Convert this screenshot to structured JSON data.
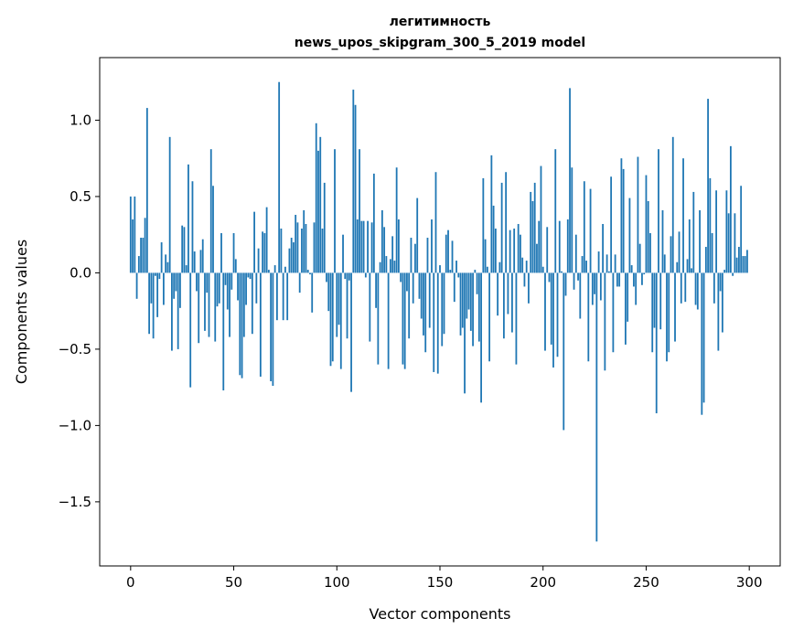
{
  "chart_data": {
    "type": "bar",
    "title": [
      "легитимность",
      "news_upos_skipgram_300_5_2019 model"
    ],
    "xlabel": "Vector components",
    "ylabel": "Components values",
    "xlim": [
      -15,
      315
    ],
    "ylim": [
      -1.92,
      1.41
    ],
    "xticks": [
      0,
      50,
      100,
      150,
      200,
      250,
      300
    ],
    "xtick_labels": [
      "0",
      "50",
      "100",
      "150",
      "200",
      "250",
      "300"
    ],
    "yticks": [
      -1.5,
      -1.0,
      -0.5,
      0.0,
      0.5,
      1.0
    ],
    "ytick_labels": [
      "−1.5",
      "−1.0",
      "−0.5",
      "0.0",
      "0.5",
      "1.0"
    ],
    "grid": false,
    "bar_color": "#1f77b4",
    "values": [
      0.5,
      0.35,
      0.5,
      -0.17,
      0.11,
      0.23,
      0.23,
      0.36,
      1.08,
      -0.4,
      -0.2,
      -0.43,
      -0.02,
      -0.29,
      -0.04,
      0.2,
      -0.21,
      0.12,
      0.07,
      0.89,
      -0.51,
      -0.17,
      -0.12,
      -0.5,
      -0.23,
      0.31,
      0.3,
      0.05,
      0.71,
      -0.75,
      0.6,
      0.14,
      -0.12,
      -0.46,
      0.15,
      0.22,
      -0.38,
      -0.13,
      -0.42,
      0.81,
      0.57,
      -0.45,
      -0.22,
      -0.2,
      0.26,
      -0.77,
      -0.08,
      -0.24,
      -0.42,
      -0.11,
      0.26,
      0.09,
      -0.18,
      -0.67,
      -0.69,
      -0.42,
      -0.21,
      -0.03,
      -0.04,
      -0.4,
      0.4,
      -0.2,
      0.16,
      -0.68,
      0.27,
      0.26,
      0.43,
      0.02,
      -0.71,
      -0.74,
      0.05,
      -0.31,
      1.25,
      0.29,
      -0.31,
      0.04,
      -0.31,
      0.16,
      0.23,
      0.2,
      0.38,
      0.33,
      -0.13,
      0.29,
      0.41,
      0.32,
      0.02,
      -0.01,
      -0.26,
      0.33,
      0.98,
      0.8,
      0.89,
      0.29,
      0.59,
      -0.06,
      -0.25,
      -0.61,
      -0.58,
      0.81,
      -0.42,
      -0.34,
      -0.63,
      0.25,
      -0.04,
      -0.43,
      -0.05,
      -0.78,
      1.2,
      1.1,
      0.35,
      0.81,
      0.34,
      0.34,
      -0.03,
      0.34,
      -0.45,
      0.33,
      0.65,
      -0.23,
      -0.6,
      0.07,
      0.41,
      0.3,
      0.11,
      -0.63,
      0.09,
      0.24,
      0.08,
      0.69,
      0.35,
      -0.06,
      -0.6,
      -0.63,
      -0.12,
      -0.43,
      0.23,
      -0.2,
      0.19,
      0.49,
      -0.17,
      -0.3,
      -0.41,
      -0.52,
      0.23,
      -0.36,
      0.35,
      -0.65,
      0.66,
      -0.66,
      0.05,
      -0.48,
      -0.4,
      0.25,
      0.28,
      0.02,
      0.21,
      -0.19,
      0.08,
      -0.03,
      -0.41,
      -0.36,
      -0.79,
      -0.3,
      -0.24,
      -0.38,
      -0.48,
      0.02,
      -0.14,
      -0.45,
      -0.85,
      0.62,
      0.22,
      0.04,
      -0.58,
      0.77,
      0.44,
      0.29,
      -0.28,
      0.07,
      0.59,
      -0.43,
      0.66,
      -0.27,
      0.28,
      -0.39,
      0.29,
      -0.6,
      0.32,
      0.25,
      0.1,
      -0.09,
      0.08,
      -0.2,
      0.53,
      0.47,
      0.59,
      0.19,
      0.34,
      0.7,
      0.04,
      -0.51,
      0.3,
      -0.06,
      -0.47,
      -0.62,
      0.81,
      -0.55,
      0.34,
      0.01,
      -1.03,
      -0.15,
      0.35,
      1.21,
      0.69,
      -0.11,
      0.25,
      -0.05,
      -0.3,
      0.11,
      0.6,
      0.08,
      -0.58,
      0.55,
      -0.21,
      -0.14,
      -1.76,
      0.14,
      -0.18,
      0.32,
      -0.64,
      0.12,
      0.01,
      0.63,
      -0.52,
      0.12,
      -0.09,
      -0.09,
      0.75,
      0.68,
      -0.47,
      -0.32,
      0.49,
      0.05,
      -0.09,
      -0.21,
      0.76,
      0.19,
      -0.08,
      -0.01,
      0.64,
      0.47,
      0.26,
      -0.52,
      -0.36,
      -0.92,
      0.81,
      -0.37,
      0.41,
      0.12,
      -0.58,
      -0.52,
      0.24,
      0.89,
      -0.45,
      0.07,
      0.27,
      -0.2,
      0.75,
      -0.19,
      0.09,
      0.35,
      0.03,
      0.53,
      -0.21,
      -0.24,
      0.41,
      -0.93,
      -0.85,
      0.17,
      1.14,
      0.62,
      0.26,
      -0.2,
      0.54,
      -0.51,
      -0.12,
      -0.39,
      0.02,
      0.54,
      0.39,
      0.83,
      -0.02,
      0.39,
      0.1,
      0.17,
      0.57,
      0.11,
      0.11,
      0.15
    ]
  }
}
